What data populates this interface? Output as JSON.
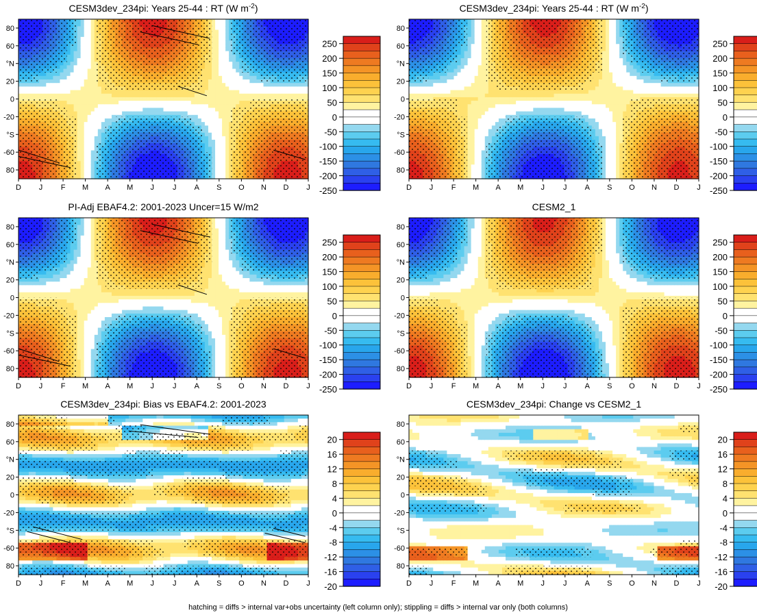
{
  "figure": {
    "caption": "hatching = diffs > internal var+obs uncertainty (left column only); stippling = diffs > internal var only (both columns)"
  },
  "colors": {
    "full_scale": [
      "#1d1dff",
      "#2a41ef",
      "#2f5fe6",
      "#2f78e0",
      "#2c90e6",
      "#28a6ec",
      "#36bbf0",
      "#5cccef",
      "#94d8ef",
      "#ffffff",
      "#ffffff",
      "#fff3a0",
      "#ffe270",
      "#fed24f",
      "#fcc23a",
      "#f9ad2d",
      "#f49426",
      "#ee7a21",
      "#e8601d",
      "#e0421b",
      "#d91e1a"
    ],
    "diff_scale": [
      "#1d1dff",
      "#2a41ef",
      "#2f5fe6",
      "#2f78e0",
      "#2c90e6",
      "#28a6ec",
      "#36bbf0",
      "#5cccef",
      "#94d8ef",
      "#ffffff",
      "#ffffff",
      "#fff3a0",
      "#ffe270",
      "#fed24f",
      "#fcc23a",
      "#f9ad2d",
      "#f49426",
      "#ee7a21",
      "#e8601d",
      "#e0421b",
      "#d91e1a"
    ]
  },
  "chart_data": [
    {
      "type": "heatmap",
      "title": "CESM3dev_234pi: Years 25-44 : RT (W m",
      "title_sup": "-2",
      "title_end": ")",
      "x_ticks": [
        "D",
        "J",
        "F",
        "M",
        "A",
        "M",
        "J",
        "J",
        "A",
        "S",
        "O",
        "N",
        "D",
        "J"
      ],
      "y_ticks": [
        "80",
        "60",
        "°N",
        "20",
        "0",
        "-20",
        "°S",
        "-60",
        "80"
      ],
      "colorbar_levels": [
        "250",
        "200",
        "150",
        "100",
        "50",
        "0",
        "-50",
        "-100",
        "-150",
        "-200",
        "-250"
      ],
      "field": "seasonal_cycle",
      "stippling": true,
      "hatching": true
    },
    {
      "type": "heatmap",
      "title": "CESM3dev_234pi: Years 25-44 : RT (W m",
      "title_sup": "-2",
      "title_end": ")",
      "x_ticks": [
        "D",
        "J",
        "F",
        "M",
        "A",
        "M",
        "J",
        "J",
        "A",
        "S",
        "O",
        "N",
        "D",
        "J"
      ],
      "y_ticks": [
        "80",
        "60",
        "°N",
        "20",
        "0",
        "-20",
        "°S",
        "-60",
        "80"
      ],
      "colorbar_levels": [
        "250",
        "200",
        "150",
        "100",
        "50",
        "0",
        "-50",
        "-100",
        "-150",
        "-200",
        "-250"
      ],
      "field": "seasonal_cycle",
      "stippling": true,
      "hatching": false
    },
    {
      "type": "heatmap",
      "title": "PI-Adj EBAF4.2: 2001-2023 Uncer=15 W/m2",
      "x_ticks": [
        "D",
        "J",
        "F",
        "M",
        "A",
        "M",
        "J",
        "J",
        "A",
        "S",
        "O",
        "N",
        "D",
        "J"
      ],
      "y_ticks": [
        "80",
        "60",
        "°N",
        "20",
        "0",
        "-20",
        "°S",
        "-60",
        "80"
      ],
      "colorbar_levels": [
        "250",
        "200",
        "150",
        "100",
        "50",
        "0",
        "-50",
        "-100",
        "-150",
        "-200",
        "-250"
      ],
      "field": "seasonal_cycle",
      "stippling": true,
      "hatching": true
    },
    {
      "type": "heatmap",
      "title": "CESM2_1",
      "x_ticks": [
        "D",
        "J",
        "F",
        "M",
        "A",
        "M",
        "J",
        "J",
        "A",
        "S",
        "O",
        "N",
        "D",
        "J"
      ],
      "y_ticks": [
        "80",
        "60",
        "°N",
        "20",
        "0",
        "-20",
        "°S",
        "-60",
        "80"
      ],
      "colorbar_levels": [
        "250",
        "200",
        "150",
        "100",
        "50",
        "0",
        "-50",
        "-100",
        "-150",
        "-200",
        "-250"
      ],
      "field": "seasonal_cycle",
      "stippling": true,
      "hatching": false
    },
    {
      "type": "heatmap",
      "title": "CESM3dev_234pi: Bias vs EBAF4.2: 2001-2023",
      "x_ticks": [
        "D",
        "J",
        "F",
        "M",
        "A",
        "M",
        "J",
        "J",
        "A",
        "S",
        "O",
        "N",
        "D",
        "J"
      ],
      "y_ticks": [
        "80",
        "60",
        "°N",
        "20",
        "0",
        "-20",
        "°S",
        "-60",
        "80"
      ],
      "colorbar_levels": [
        "20",
        "16",
        "12",
        "8",
        "4",
        "0",
        "-4",
        "-8",
        "-12",
        "-16",
        "-20"
      ],
      "field": "bias",
      "stippling": true,
      "hatching": true
    },
    {
      "type": "heatmap",
      "title": "CESM3dev_234pi: Change vs CESM2_1",
      "x_ticks": [
        "D",
        "J",
        "F",
        "M",
        "A",
        "M",
        "J",
        "J",
        "A",
        "S",
        "O",
        "N",
        "D",
        "J"
      ],
      "y_ticks": [
        "80",
        "60",
        "°N",
        "20",
        "0",
        "-20",
        "°S",
        "-60",
        "80"
      ],
      "colorbar_levels": [
        "20",
        "16",
        "12",
        "8",
        "4",
        "0",
        "-4",
        "-8",
        "-12",
        "-16",
        "-20"
      ],
      "field": "change",
      "stippling": true,
      "hatching": false
    }
  ]
}
